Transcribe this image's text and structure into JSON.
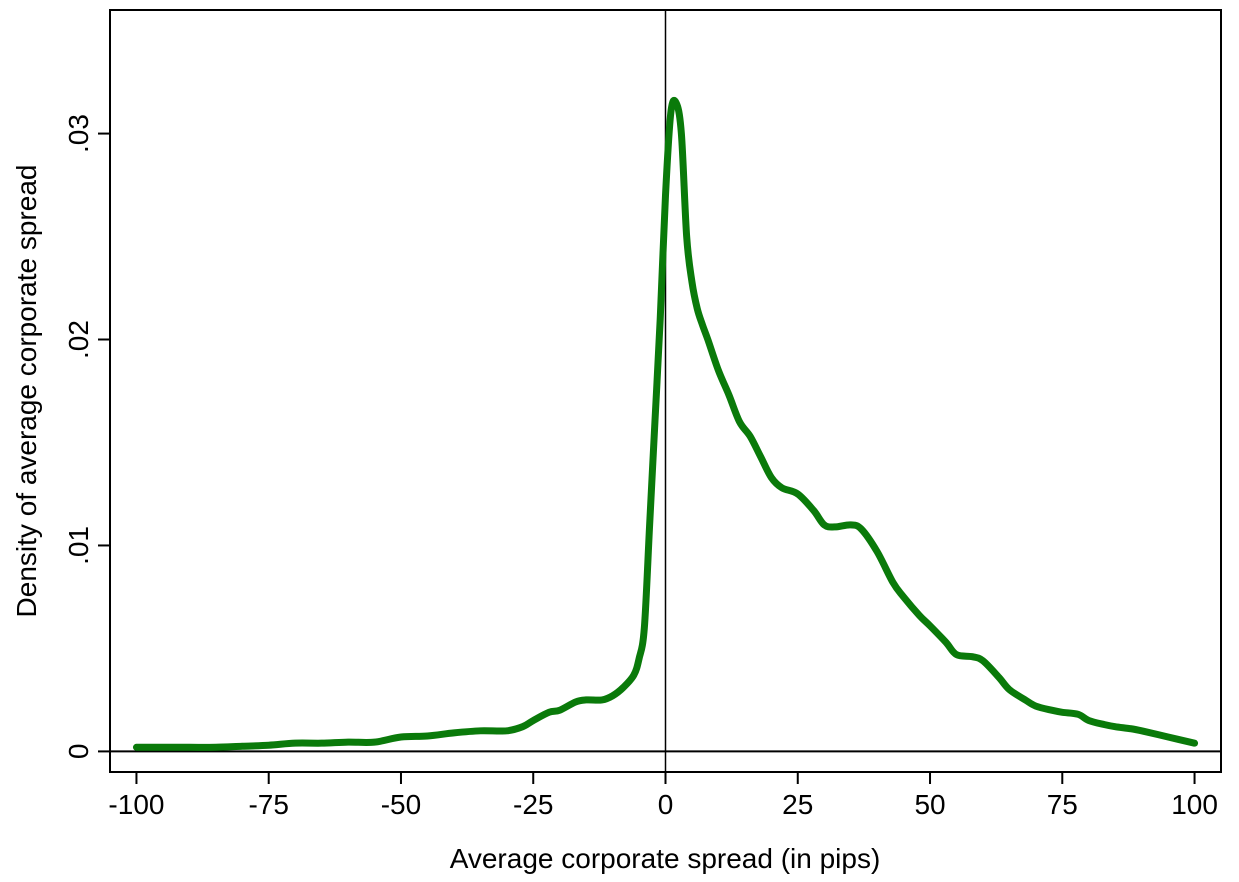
{
  "chart_data": {
    "type": "line",
    "title": "",
    "xlabel": "Average corporate spread (in pips)",
    "ylabel": "Density of average corporate spread",
    "xlim": [
      -105,
      105
    ],
    "ylim": [
      -0.001,
      0.036
    ],
    "xticks": [
      -100,
      -75,
      -50,
      -25,
      0,
      25,
      50,
      75,
      100
    ],
    "xtick_labels": [
      "-100",
      "-75",
      "-50",
      "-25",
      "0",
      "25",
      "50",
      "75",
      "100"
    ],
    "yticks": [
      0,
      0.01,
      0.02,
      0.03
    ],
    "ytick_labels": [
      "0",
      ".01",
      ".02",
      ".03"
    ],
    "reference_lines": {
      "x": 0,
      "y": 0
    },
    "grid": false,
    "legend": "none",
    "colors": {
      "line": "#0a7a0a",
      "axes": "#000000",
      "background": "#ffffff"
    },
    "series": [
      {
        "x": [
          -100,
          -95,
          -90,
          -85,
          -80,
          -75,
          -70,
          -65,
          -60,
          -55,
          -50,
          -45,
          -40,
          -35,
          -30,
          -27,
          -25,
          -22,
          -20,
          -17,
          -15,
          -12,
          -10,
          -8,
          -6,
          -5,
          -4,
          -3,
          -2,
          -1,
          0,
          1,
          2,
          3,
          4,
          5,
          6,
          7,
          8,
          10,
          12,
          14,
          16,
          18,
          20,
          22,
          25,
          28,
          30,
          32,
          35,
          37,
          40,
          43,
          45,
          48,
          50,
          53,
          55,
          58,
          60,
          63,
          65,
          68,
          70,
          73,
          75,
          78,
          80,
          83,
          85,
          88,
          90,
          95,
          100
        ],
        "y": [
          0.0002,
          0.0002,
          0.0002,
          0.0002,
          0.00025,
          0.0003,
          0.0004,
          0.0004,
          0.00045,
          0.00045,
          0.0007,
          0.00075,
          0.0009,
          0.001,
          0.001,
          0.0012,
          0.0015,
          0.0019,
          0.002,
          0.0024,
          0.0025,
          0.0025,
          0.0027,
          0.0031,
          0.0037,
          0.0045,
          0.006,
          0.011,
          0.016,
          0.021,
          0.027,
          0.031,
          0.0315,
          0.03,
          0.025,
          0.0228,
          0.0215,
          0.0207,
          0.02,
          0.0185,
          0.0173,
          0.016,
          0.0153,
          0.0143,
          0.0133,
          0.0128,
          0.0125,
          0.0117,
          0.011,
          0.0109,
          0.011,
          0.0108,
          0.0097,
          0.0082,
          0.0075,
          0.0066,
          0.0061,
          0.0053,
          0.0047,
          0.0046,
          0.0044,
          0.0036,
          0.003,
          0.0025,
          0.0022,
          0.002,
          0.0019,
          0.0018,
          0.0015,
          0.0013,
          0.0012,
          0.0011,
          0.001,
          0.0007,
          0.0004
        ]
      }
    ]
  }
}
